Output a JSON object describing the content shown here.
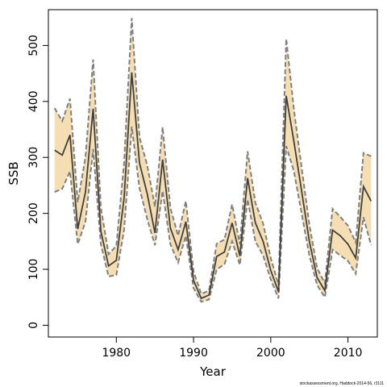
{
  "chart_data": {
    "type": "line",
    "title": "",
    "xlabel": "Year",
    "ylabel": "SSB",
    "xlim": [
      1971.2,
      2013.8
    ],
    "ylim": [
      -21,
      564
    ],
    "x_ticks": [
      1980,
      1990,
      2000,
      2010
    ],
    "y_ticks": [
      0,
      100,
      200,
      300,
      400,
      500
    ],
    "grid": false,
    "legend": "none",
    "x": [
      1972,
      1973,
      1974,
      1975,
      1976,
      1977,
      1978,
      1979,
      1980,
      1981,
      1982,
      1983,
      1984,
      1985,
      1986,
      1987,
      1988,
      1989,
      1990,
      1991,
      1992,
      1993,
      1994,
      1995,
      1996,
      1997,
      1998,
      1999,
      2000,
      2001,
      2002,
      2003,
      2004,
      2005,
      2006,
      2007,
      2008,
      2009,
      2010,
      2011,
      2012,
      2013
    ],
    "series": [
      {
        "role": "estimate",
        "values": [
          313,
          304,
          340,
          172,
          238,
          387,
          168,
          106,
          116,
          227,
          452,
          290,
          235,
          165,
          296,
          174,
          135,
          185,
          80,
          48,
          54,
          123,
          131,
          183,
          124,
          263,
          183,
          150,
          98,
          60,
          410,
          328,
          240,
          150,
          85,
          62,
          170,
          160,
          145,
          120,
          248,
          222
        ]
      },
      {
        "role": "upper",
        "values": [
          388,
          365,
          405,
          220,
          300,
          475,
          210,
          127,
          142,
          290,
          549,
          336,
          286,
          212,
          354,
          210,
          160,
          222,
          96,
          56,
          62,
          146,
          153,
          216,
          145,
          311,
          219,
          182,
          120,
          73,
          512,
          385,
          282,
          180,
          102,
          75,
          208,
          194,
          178,
          148,
          308,
          302
        ]
      },
      {
        "role": "lower",
        "values": [
          238,
          244,
          275,
          145,
          185,
          315,
          145,
          87,
          90,
          170,
          355,
          245,
          190,
          143,
          240,
          145,
          112,
          160,
          66,
          42,
          46,
          100,
          109,
          150,
          108,
          225,
          150,
          125,
          82,
          48,
          320,
          275,
          200,
          125,
          72,
          50,
          135,
          125,
          115,
          92,
          193,
          143
        ]
      }
    ],
    "colors": {
      "band_fill": "#F5DEB3",
      "estimate_line": "#404040",
      "bound_line": "#808080",
      "axis": "#000000"
    },
    "footnote": "stockassessment.org, Haddock-2014-56, r3111"
  }
}
